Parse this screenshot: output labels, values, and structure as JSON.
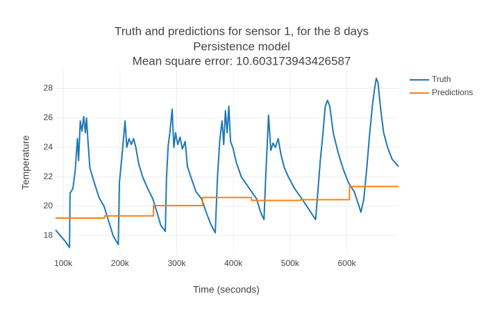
{
  "chart_data": {
    "type": "line",
    "title_lines": [
      "Truth and predictions for sensor 1, for the 8 days",
      "Persistence model",
      "Mean square error: 10.603173943426587"
    ],
    "x_label": "Time (seconds)",
    "y_label": "Temperature",
    "xlim": [
      86400,
      691200
    ],
    "ylim": [
      16.7,
      29.3
    ],
    "xticks": [
      {
        "value": 100000,
        "label": "100k"
      },
      {
        "value": 200000,
        "label": "200k"
      },
      {
        "value": 300000,
        "label": "300k"
      },
      {
        "value": 400000,
        "label": "400k"
      },
      {
        "value": 500000,
        "label": "500k"
      },
      {
        "value": 600000,
        "label": "600k"
      }
    ],
    "yticks": [
      18,
      20,
      22,
      24,
      26,
      28
    ],
    "grid": true,
    "legend": "top-right",
    "series": [
      {
        "name": "Truth",
        "color": "#1f77b4",
        "x": [
          86400,
          95000,
          104000,
          111000,
          112000,
          117000,
          121000,
          125000,
          127000,
          130000,
          133000,
          136000,
          139000,
          141000,
          144000,
          147000,
          154000,
          163000,
          172000,
          180000,
          188000,
          197000,
          199000,
          203000,
          206000,
          209000,
          212000,
          216000,
          220000,
          224000,
          228000,
          233000,
          240000,
          249000,
          258000,
          266000,
          272000,
          280000,
          282000,
          285000,
          288000,
          292000,
          295000,
          298000,
          302000,
          306000,
          310000,
          315000,
          319000,
          325000,
          334000,
          344000,
          352000,
          360000,
          368000,
          372000,
          376000,
          380000,
          383000,
          386000,
          389000,
          392000,
          395000,
          399000,
          405000,
          414000,
          423000,
          432000,
          441000,
          448000,
          454000,
          457000,
          460000,
          462000,
          466000,
          470000,
          474000,
          479000,
          484000,
          490000,
          497000,
          508000,
          521000,
          533000,
          545000,
          549000,
          553000,
          558000,
          562000,
          566000,
          570000,
          576000,
          585000,
          594000,
          603000,
          613000,
          620000,
          625000,
          630000,
          635000,
          640000,
          645000,
          649000,
          652000,
          655000,
          660000,
          665000,
          672000,
          680000,
          691200
        ],
        "values": [
          18.4,
          18.0,
          17.6,
          17.2,
          20.9,
          21.2,
          22.4,
          24.6,
          23.1,
          25.8,
          25.1,
          26.1,
          25.0,
          26.0,
          24.2,
          22.6,
          21.7,
          20.6,
          20.0,
          19.0,
          18.0,
          17.4,
          21.6,
          23.2,
          24.5,
          25.8,
          24.0,
          24.6,
          24.2,
          24.6,
          24.0,
          22.9,
          22.0,
          21.2,
          20.5,
          19.5,
          18.7,
          18.3,
          21.9,
          24.1,
          25.0,
          26.6,
          24.0,
          25.0,
          24.2,
          24.7,
          23.9,
          24.4,
          22.7,
          22.0,
          21.0,
          20.5,
          19.6,
          18.8,
          18.2,
          22.0,
          24.5,
          25.8,
          24.2,
          26.5,
          25.0,
          26.8,
          24.4,
          24.0,
          23.0,
          22.0,
          21.5,
          21.0,
          20.5,
          19.6,
          19.1,
          22.0,
          24.5,
          26.2,
          23.8,
          24.3,
          24.0,
          24.6,
          23.5,
          22.6,
          22.0,
          21.2,
          20.5,
          19.8,
          19.1,
          21.0,
          23.0,
          25.0,
          26.8,
          27.2,
          26.8,
          25.0,
          23.6,
          22.5,
          21.6,
          21.0,
          20.2,
          19.6,
          20.5,
          22.5,
          24.8,
          26.8,
          28.0,
          28.7,
          28.4,
          26.5,
          25.0,
          24.0,
          23.2,
          22.7
        ]
      },
      {
        "name": "Predictions",
        "color": "#ff7f0e",
        "x": [
          86400,
          172800,
          172800,
          259200,
          259200,
          345600,
          345600,
          432000,
          432000,
          518400,
          518400,
          604800,
          604800,
          691200
        ],
        "values": [
          19.2,
          19.2,
          19.35,
          19.35,
          20.05,
          20.05,
          20.6,
          20.6,
          20.4,
          20.4,
          20.45,
          20.45,
          21.35,
          21.35
        ]
      }
    ]
  }
}
